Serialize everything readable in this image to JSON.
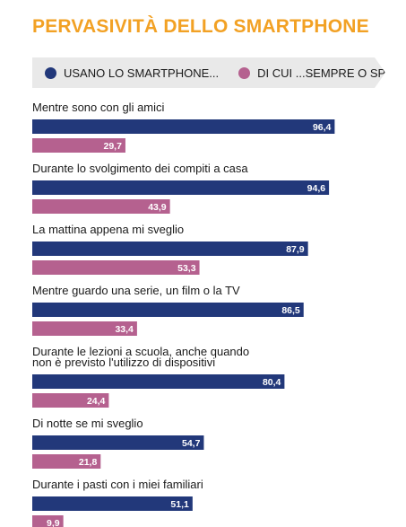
{
  "chart_data": {
    "type": "bar",
    "orientation": "horizontal",
    "title": "PERVASIVITÀ DELLO SMARTPHONE",
    "categories": [
      [
        "Mentre sono con gli amici"
      ],
      [
        "Durante lo svolgimento dei compiti a casa"
      ],
      [
        "La mattina appena mi sveglio"
      ],
      [
        "Mentre guardo una serie, un film o la TV"
      ],
      [
        "Durante le lezioni a scuola, anche quando",
        "non è previsto l'utilizzo di dispositivi"
      ],
      [
        "Di notte se mi sveglio"
      ],
      [
        "Durante i pasti con i miei familiari"
      ]
    ],
    "series": [
      {
        "name": "USANO LO SMARTPHONE...",
        "color": "#22387a",
        "values": [
          96.4,
          94.6,
          87.9,
          86.5,
          80.4,
          54.7,
          51.1
        ],
        "labels": [
          "96,4",
          "94,6",
          "87,9",
          "86,5",
          "80,4",
          "54,7",
          "51,1"
        ]
      },
      {
        "name": "DI CUI ...SEMPRE O SPESSO",
        "color": "#b5618f",
        "values": [
          29.7,
          43.9,
          53.3,
          33.4,
          24.4,
          21.8,
          9.9
        ],
        "labels": [
          "29,7",
          "43,9",
          "53,3",
          "33,4",
          "24,4",
          "21,8",
          "9,9"
        ]
      }
    ],
    "xlim": [
      0,
      100
    ],
    "grid": false,
    "legend_position": "top"
  }
}
